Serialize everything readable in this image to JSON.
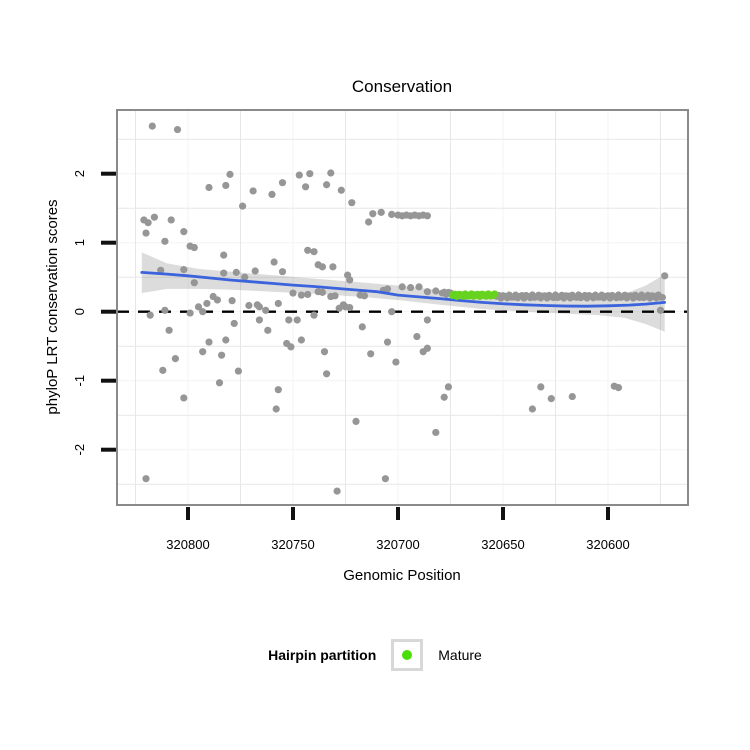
{
  "header": {
    "title": "Conservation"
  },
  "legend": {
    "title": "Hairpin partition",
    "items": [
      {
        "label": "Mature",
        "color": "#55D911",
        "marker": "circle"
      }
    ]
  },
  "colors": {
    "point_gray": "#969696",
    "mature_green": "#67D31F",
    "legend_green": "#4ADE08",
    "smooth_blue": "#3A63DC",
    "ribbon_gray": "rgba(128,128,128,0.28)",
    "panel_border": "#8A8A8A",
    "grid_minor": "#E7E7E7",
    "grid_major": "#F6F6F6",
    "axis_text": "#000000",
    "dashed_line": "#000000"
  },
  "chart_data": {
    "type": "scatter",
    "title": "Conservation",
    "xlabel": "Genomic Position",
    "ylabel": "phyloP LRT conservation scores",
    "x_reversed": true,
    "xlim": [
      320834,
      320562
    ],
    "ylim": [
      -2.8,
      2.9
    ],
    "x_ticks": [
      320800,
      320750,
      320700,
      320650,
      320600
    ],
    "x_tick_labels": [
      "320800",
      "320750",
      "320700",
      "320650",
      "320600"
    ],
    "y_ticks": [
      2,
      1,
      0,
      -1,
      -2
    ],
    "y_tick_labels": [
      "2",
      "1",
      "0",
      "-1",
      "-2"
    ],
    "grid": {
      "major": true,
      "minor": true
    },
    "hline": {
      "y": 0,
      "style": "dashed"
    },
    "legend": {
      "title": "Hairpin partition",
      "position": "bottom",
      "items": [
        {
          "label": "Mature"
        }
      ]
    },
    "series": [
      {
        "name": "flank-points",
        "type": "scatter",
        "points": [
          [
            320817,
            2.69
          ],
          [
            320805,
            2.64
          ],
          [
            320821,
            1.33
          ],
          [
            320819,
            1.29
          ],
          [
            320816,
            1.37
          ],
          [
            320820,
            1.14
          ],
          [
            320811,
            1.02
          ],
          [
            320808,
            1.33
          ],
          [
            320802,
            1.16
          ],
          [
            320799,
            0.95
          ],
          [
            320797,
            0.93
          ],
          [
            320783,
            0.82
          ],
          [
            320790,
            1.8
          ],
          [
            320782,
            1.83
          ],
          [
            320780,
            1.99
          ],
          [
            320774,
            1.53
          ],
          [
            320769,
            1.75
          ],
          [
            320760,
            1.7
          ],
          [
            320755,
            1.87
          ],
          [
            320747,
            1.98
          ],
          [
            320744,
            1.81
          ],
          [
            320742,
            2.0
          ],
          [
            320734,
            1.84
          ],
          [
            320732,
            2.01
          ],
          [
            320727,
            1.76
          ],
          [
            320722,
            1.58
          ],
          [
            320714,
            1.3
          ],
          [
            320712,
            1.42
          ],
          [
            320708,
            1.44
          ],
          [
            320703,
            1.41
          ],
          [
            320700,
            1.4
          ],
          [
            320698,
            1.39
          ],
          [
            320696,
            1.4
          ],
          [
            320694,
            1.39
          ],
          [
            320692,
            1.4
          ],
          [
            320690,
            1.39
          ],
          [
            320688,
            1.4
          ],
          [
            320686,
            1.39
          ],
          [
            320813,
            0.6
          ],
          [
            320802,
            0.61
          ],
          [
            320797,
            0.42
          ],
          [
            320783,
            0.56
          ],
          [
            320777,
            0.57
          ],
          [
            320773,
            0.5
          ],
          [
            320768,
            0.59
          ],
          [
            320759,
            0.72
          ],
          [
            320755,
            0.58
          ],
          [
            320743,
            0.89
          ],
          [
            320740,
            0.87
          ],
          [
            320738,
            0.68
          ],
          [
            320736,
            0.65
          ],
          [
            320731,
            0.65
          ],
          [
            320724,
            0.53
          ],
          [
            320723,
            0.46
          ],
          [
            320818,
            -0.05
          ],
          [
            320811,
            0.02
          ],
          [
            320809,
            -0.27
          ],
          [
            320799,
            -0.02
          ],
          [
            320795,
            0.07
          ],
          [
            320793,
            0.0
          ],
          [
            320791,
            0.12
          ],
          [
            320788,
            0.22
          ],
          [
            320786,
            0.17
          ],
          [
            320779,
            0.16
          ],
          [
            320778,
            -0.17
          ],
          [
            320812,
            -0.85
          ],
          [
            320806,
            -0.68
          ],
          [
            320802,
            -1.25
          ],
          [
            320793,
            -0.58
          ],
          [
            320790,
            -0.44
          ],
          [
            320785,
            -1.03
          ],
          [
            320784,
            -0.63
          ],
          [
            320782,
            -0.41
          ],
          [
            320776,
            -0.86
          ],
          [
            320820,
            -2.42
          ],
          [
            320771,
            0.09
          ],
          [
            320767,
            0.1
          ],
          [
            320766,
            0.07
          ],
          [
            320763,
            0.02
          ],
          [
            320757,
            0.12
          ],
          [
            320766,
            -0.12
          ],
          [
            320762,
            -0.27
          ],
          [
            320753,
            -0.46
          ],
          [
            320751,
            -0.51
          ],
          [
            320752,
            -0.12
          ],
          [
            320748,
            -0.12
          ],
          [
            320746,
            -0.41
          ],
          [
            320740,
            -0.05
          ],
          [
            320735,
            -0.58
          ],
          [
            320734,
            -0.9
          ],
          [
            320757,
            -1.13
          ],
          [
            320758,
            -1.41
          ],
          [
            320728,
            0.05
          ],
          [
            320726,
            0.1
          ],
          [
            320720,
            -1.59
          ],
          [
            320729,
            -2.6
          ],
          [
            320717,
            -0.22
          ],
          [
            320713,
            -0.61
          ],
          [
            320706,
            -2.42
          ],
          [
            320705,
            -0.44
          ],
          [
            320701,
            -0.73
          ],
          [
            320750,
            0.27
          ],
          [
            320746,
            0.24
          ],
          [
            320743,
            0.25
          ],
          [
            320738,
            0.29
          ],
          [
            320736,
            0.28
          ],
          [
            320732,
            0.22
          ],
          [
            320730,
            0.23
          ],
          [
            320725,
            0.07
          ],
          [
            320723,
            0.06
          ],
          [
            320718,
            0.24
          ],
          [
            320716,
            0.23
          ],
          [
            320703,
            0.0
          ],
          [
            320707,
            0.31
          ],
          [
            320705,
            0.33
          ],
          [
            320698,
            0.36
          ],
          [
            320694,
            0.35
          ],
          [
            320690,
            0.36
          ],
          [
            320686,
            0.29
          ],
          [
            320682,
            0.3
          ],
          [
            320686,
            -0.12
          ],
          [
            320691,
            -0.36
          ],
          [
            320686,
            -0.53
          ],
          [
            320688,
            -0.58
          ],
          [
            320676,
            -1.09
          ],
          [
            320678,
            -1.24
          ],
          [
            320682,
            -1.75
          ],
          [
            320636,
            -1.41
          ],
          [
            320632,
            -1.09
          ],
          [
            320627,
            -1.26
          ],
          [
            320617,
            -1.23
          ],
          [
            320597,
            -1.08
          ],
          [
            320595,
            -1.1
          ],
          [
            320575,
            0.02
          ],
          [
            320573,
            0.52
          ]
        ]
      },
      {
        "name": "flank-dense-runs",
        "type": "scatter-run",
        "runs": [
          {
            "from": 320679,
            "to": 320675,
            "step": 1,
            "score": 0.27,
            "jitter": 0.02
          },
          {
            "from": 320653,
            "to": 320574,
            "step": 1,
            "score": 0.22,
            "jitter": 0.025
          }
        ]
      },
      {
        "name": "mature-points",
        "type": "scatter-run",
        "runs": [
          {
            "from": 320674,
            "to": 320654,
            "step": 1,
            "score": 0.24,
            "jitter": 0.015
          }
        ]
      }
    ],
    "smooth": {
      "name": "loess-fit",
      "points": [
        [
          320822,
          0.57
        ],
        [
          320810,
          0.545
        ],
        [
          320800,
          0.52
        ],
        [
          320790,
          0.49
        ],
        [
          320780,
          0.46
        ],
        [
          320770,
          0.435
        ],
        [
          320760,
          0.41
        ],
        [
          320750,
          0.385
        ],
        [
          320740,
          0.365
        ],
        [
          320730,
          0.34
        ],
        [
          320720,
          0.315
        ],
        [
          320710,
          0.29
        ],
        [
          320700,
          0.24
        ],
        [
          320690,
          0.215
        ],
        [
          320680,
          0.19
        ],
        [
          320670,
          0.16
        ],
        [
          320660,
          0.135
        ],
        [
          320650,
          0.115
        ],
        [
          320640,
          0.1
        ],
        [
          320630,
          0.09
        ],
        [
          320620,
          0.082
        ],
        [
          320610,
          0.08
        ],
        [
          320600,
          0.085
        ],
        [
          320590,
          0.095
        ],
        [
          320582,
          0.11
        ],
        [
          320573,
          0.135
        ]
      ]
    },
    "ribbon": {
      "name": "confidence-band",
      "points": [
        [
          320822,
          0.86,
          0.27
        ],
        [
          320810,
          0.7,
          0.33
        ],
        [
          320795,
          0.62,
          0.33
        ],
        [
          320780,
          0.58,
          0.32
        ],
        [
          320760,
          0.53,
          0.29
        ],
        [
          320740,
          0.48,
          0.26
        ],
        [
          320720,
          0.43,
          0.22
        ],
        [
          320700,
          0.38,
          0.17
        ],
        [
          320680,
          0.31,
          0.1
        ],
        [
          320660,
          0.25,
          0.04
        ],
        [
          320640,
          0.21,
          0.0
        ],
        [
          320620,
          0.19,
          -0.03
        ],
        [
          320605,
          0.2,
          -0.05
        ],
        [
          320592,
          0.26,
          -0.09
        ],
        [
          320582,
          0.38,
          -0.18
        ],
        [
          320573,
          0.54,
          -0.29
        ]
      ]
    }
  }
}
